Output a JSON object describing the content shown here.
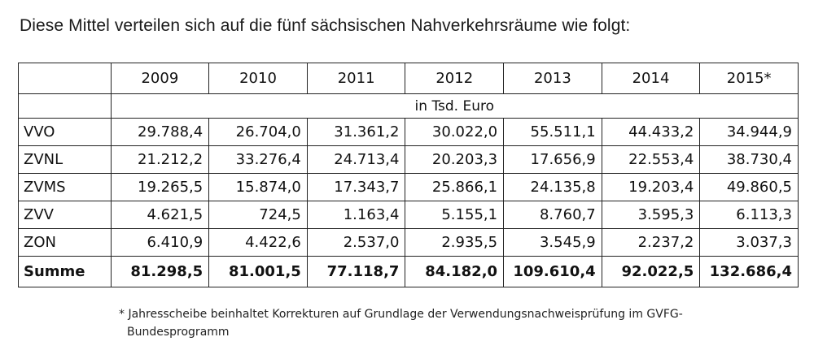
{
  "heading": "Diese Mittel verteilen sich auf die fünf sächsischen Nahverkehrsräume wie folgt:",
  "table": {
    "years": [
      "2009",
      "2010",
      "2011",
      "2012",
      "2013",
      "2014",
      "2015*"
    ],
    "unit": "in Tsd. Euro",
    "rows": [
      {
        "label": "VVO",
        "values": [
          "29.788,4",
          "26.704,0",
          "31.361,2",
          "30.022,0",
          "55.511,1",
          "44.433,2",
          "34.944,9"
        ]
      },
      {
        "label": "ZVNL",
        "values": [
          "21.212,2",
          "33.276,4",
          "24.713,4",
          "20.203,3",
          "17.656,9",
          "22.553,4",
          "38.730,4"
        ]
      },
      {
        "label": "ZVMS",
        "values": [
          "19.265,5",
          "15.874,0",
          "17.343,7",
          "25.866,1",
          "24.135,8",
          "19.203,4",
          "49.860,5"
        ]
      },
      {
        "label": "ZVV",
        "values": [
          "4.621,5",
          "724,5",
          "1.163,4",
          "5.155,1",
          "8.760,7",
          "3.595,3",
          "6.113,3"
        ]
      },
      {
        "label": "ZON",
        "values": [
          "6.410,9",
          "4.422,6",
          "2.537,0",
          "2.935,5",
          "3.545,9",
          "2.237,2",
          "3.037,3"
        ]
      }
    ],
    "sum": {
      "label": "Summe",
      "values": [
        "81.298,5",
        "81.001,5",
        "77.118,7",
        "84.182,0",
        "109.610,4",
        "92.022,5",
        "132.686,4"
      ]
    }
  },
  "footnote": {
    "line1": "* Jahresscheibe beinhaltet Korrekturen auf Grundlage der Verwendungsnachweisprüfung im GVFG-",
    "line2": "Bundesprogramm"
  }
}
